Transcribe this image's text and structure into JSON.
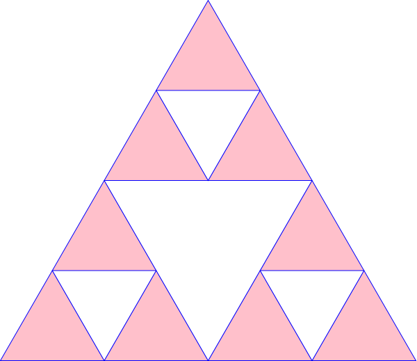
{
  "figure": {
    "type": "sierpinski-triangle",
    "depth": 2,
    "filled_triangle_count": 9,
    "hole_triangle_count": 4,
    "colors": {
      "background": "#ffffff",
      "fill": "#ffc0cb",
      "stroke": "#0000ff"
    }
  }
}
